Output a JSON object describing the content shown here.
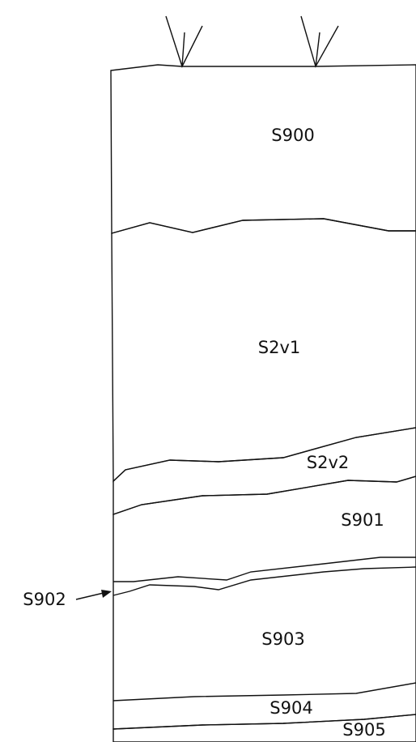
{
  "layers": [
    {
      "label": "S900"
    },
    {
      "label": "S2v1"
    },
    {
      "label": "S2v2"
    },
    {
      "label": "S901"
    },
    {
      "label": "S902"
    },
    {
      "label": "S903"
    },
    {
      "label": "S904"
    },
    {
      "label": "S905"
    }
  ]
}
